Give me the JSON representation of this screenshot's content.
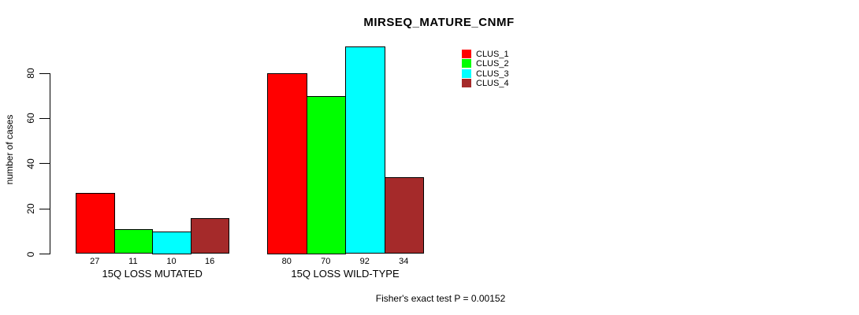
{
  "chart_data": {
    "type": "bar",
    "title": "MIRSEQ_MATURE_CNMF",
    "ylabel": "number of cases",
    "xlabel": "",
    "yticks": [
      0,
      20,
      40,
      60,
      80
    ],
    "ylim": [
      0,
      92
    ],
    "grid": false,
    "legend_position": "top-right",
    "categories": [
      "15Q LOSS MUTATED",
      "15Q LOSS WILD-TYPE"
    ],
    "series": [
      {
        "name": "CLUS_1",
        "color": "#FF0000",
        "values": [
          27,
          80
        ]
      },
      {
        "name": "CLUS_2",
        "color": "#00FF00",
        "values": [
          11,
          70
        ]
      },
      {
        "name": "CLUS_3",
        "color": "#00FFFF",
        "values": [
          10,
          92
        ]
      },
      {
        "name": "CLUS_4",
        "color": "#A52A2A",
        "values": [
          16,
          34
        ]
      }
    ],
    "bar_value_labels": [
      [
        27,
        11,
        10,
        16
      ],
      [
        80,
        70,
        92,
        34
      ]
    ],
    "footnote": "Fisher's exact test P = 0.00152",
    "text_color": "#000000",
    "axis_color": "#000000"
  }
}
